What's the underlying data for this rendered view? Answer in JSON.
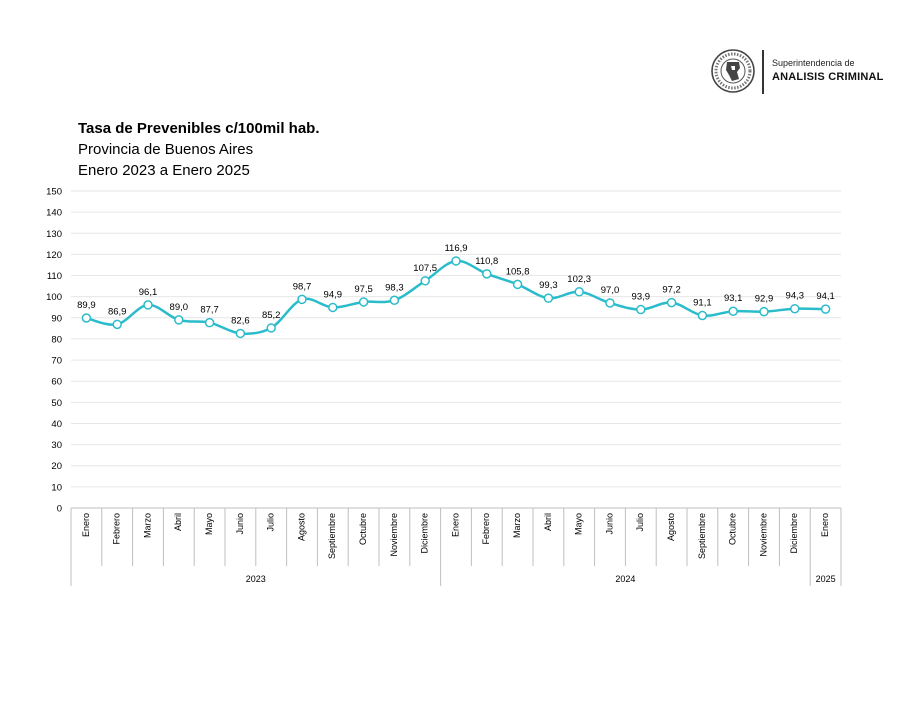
{
  "header": {
    "org_line1": "Superintendencia de",
    "org_line2": "ANALISIS CRIMINAL"
  },
  "title": "Tasa de Prevenibles c/100mil hab.",
  "subtitle1": "Provincia de Buenos Aires",
  "subtitle2": "Enero 2023 a Enero 2025",
  "colors": {
    "line": "#2bbccb",
    "grid": "#e6e6e6",
    "axis": "#bfbfbf"
  },
  "chart_data": {
    "type": "line",
    "title": "Tasa de Prevenibles c/100mil hab.",
    "ylim": [
      0,
      150
    ],
    "yticks": [
      0,
      10,
      20,
      30,
      40,
      50,
      60,
      70,
      80,
      90,
      100,
      110,
      120,
      130,
      140,
      150
    ],
    "grid": true,
    "categories": [
      "Enero",
      "Febrero",
      "Marzo",
      "Abril",
      "Mayo",
      "Junio",
      "Julio",
      "Agosto",
      "Septiembre",
      "Octubre",
      "Noviembre",
      "Diciembre",
      "Enero",
      "Febrero",
      "Marzo",
      "Abril",
      "Mayo",
      "Junio",
      "Julio",
      "Agosto",
      "Septiembre",
      "Octubre",
      "Noviembre",
      "Diciembre",
      "Enero"
    ],
    "groups": [
      {
        "label": "2023",
        "count": 12
      },
      {
        "label": "2024",
        "count": 12
      },
      {
        "label": "2025",
        "count": 1
      }
    ],
    "series": [
      {
        "values": [
          89.9,
          86.9,
          96.1,
          89.0,
          87.7,
          82.6,
          85.2,
          98.7,
          94.9,
          97.5,
          98.3,
          107.5,
          116.9,
          110.8,
          105.8,
          99.3,
          102.3,
          97.0,
          93.9,
          97.2,
          91.1,
          93.1,
          92.9,
          94.3,
          94.1
        ],
        "labels": [
          "89,9",
          "86,9",
          "96,1",
          "89,0",
          "87,7",
          "82,6",
          "85,2",
          "98,7",
          "94,9",
          "97,5",
          "98,3",
          "107,5",
          "116,9",
          "110,8",
          "105,8",
          "99,3",
          "102,3",
          "97,0",
          "93,9",
          "97,2",
          "91,1",
          "93,1",
          "92,9",
          "94,3",
          "94,1"
        ]
      }
    ]
  }
}
